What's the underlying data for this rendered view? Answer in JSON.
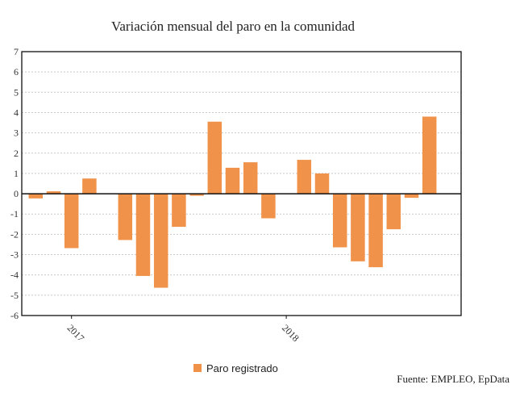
{
  "chart_data": {
    "type": "bar",
    "title": "Variación mensual del paro en la comunidad",
    "xlabel": "",
    "ylabel": "",
    "ylim": [
      -6,
      7
    ],
    "yticks": [
      -6,
      -5,
      -4,
      -3,
      -2,
      -1,
      0,
      1,
      2,
      3,
      4,
      5,
      6,
      7
    ],
    "grid": true,
    "categories": [
      "2016-11",
      "2016-12",
      "2017-01",
      "2017-02",
      "2017-03",
      "2017-04",
      "2017-05",
      "2017-06",
      "2017-07",
      "2017-08",
      "2017-09",
      "2017-10",
      "2017-11",
      "2017-12",
      "2018-01",
      "2018-02",
      "2018-03",
      "2018-04",
      "2018-05",
      "2018-06",
      "2018-07",
      "2018-08",
      "2018-09"
    ],
    "xtick_labels": [
      {
        "category": "2017-01",
        "label": "2017"
      },
      {
        "category": "2018-01",
        "label": "2018"
      }
    ],
    "series": [
      {
        "name": "Paro registrado",
        "color": "#f0924a",
        "values": [
          -0.23,
          0.12,
          -2.68,
          0.75,
          0,
          -2.28,
          -4.05,
          -4.63,
          -1.63,
          -0.1,
          3.55,
          1.28,
          1.55,
          -1.21,
          0,
          1.67,
          1.0,
          -2.64,
          -3.33,
          -3.62,
          -1.75,
          -0.2,
          3.8
        ]
      }
    ],
    "legend": {
      "placement": "bottom-center",
      "entries": [
        "Paro registrado"
      ]
    },
    "source": "Fuente: EMPLEO, EpData"
  }
}
